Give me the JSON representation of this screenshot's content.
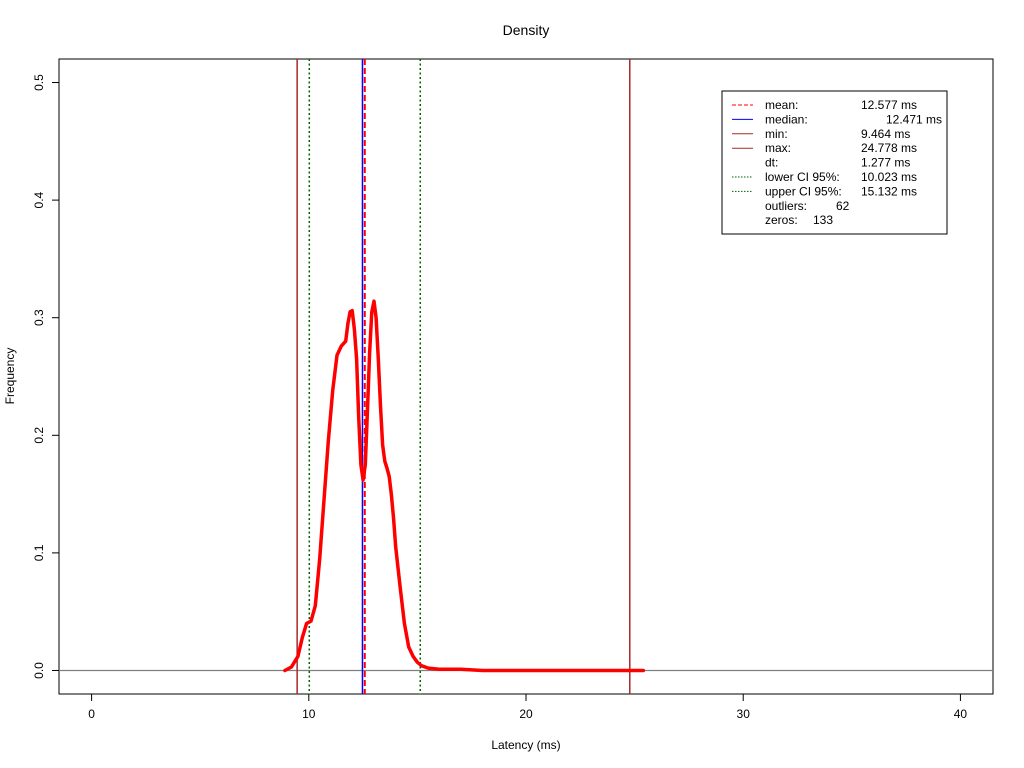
{
  "chart_data": {
    "type": "line",
    "title": "Density",
    "xlabel": "Latency (ms)",
    "ylabel": "Frequency",
    "xlim": [
      -1.5,
      41.5
    ],
    "ylim": [
      -0.02,
      0.52
    ],
    "x_ticks": [
      0,
      10,
      20,
      30,
      40
    ],
    "x_tick_labels": [
      "0",
      "10",
      "20",
      "30",
      "40"
    ],
    "y_ticks": [
      0.0,
      0.1,
      0.2,
      0.3,
      0.4,
      0.5
    ],
    "y_tick_labels": [
      "0.0",
      "0.1",
      "0.2",
      "0.3",
      "0.4",
      "0.5"
    ],
    "grid": false,
    "legend_position": "top-right",
    "colors": {
      "density": "#ff0000",
      "mean": "#ff0000",
      "median": "#0000ff",
      "min": "#a52a2a",
      "max": "#a52a2a",
      "ci": "#006400",
      "baseline": "#808080"
    },
    "series": [
      {
        "x": [
          8.9,
          9.2,
          9.5,
          9.7,
          9.9,
          10.0,
          10.1,
          10.3,
          10.5,
          10.7,
          10.9,
          11.1,
          11.3,
          11.5,
          11.7,
          11.8,
          11.9,
          12.0,
          12.1,
          12.2,
          12.3,
          12.4,
          12.5,
          12.6,
          12.7,
          12.8,
          12.9,
          13.0,
          13.1,
          13.2,
          13.3,
          13.4,
          13.5,
          13.6,
          13.7,
          13.8,
          13.9,
          14.0,
          14.2,
          14.4,
          14.6,
          14.8,
          15.0,
          15.2,
          15.5,
          16.0,
          16.5,
          17.0,
          18.0,
          20.0,
          22.0,
          24.0,
          25.4
        ],
        "y": [
          0.0,
          0.003,
          0.012,
          0.028,
          0.04,
          0.041,
          0.042,
          0.055,
          0.095,
          0.145,
          0.195,
          0.238,
          0.268,
          0.276,
          0.28,
          0.295,
          0.305,
          0.306,
          0.29,
          0.265,
          0.215,
          0.175,
          0.162,
          0.175,
          0.22,
          0.27,
          0.305,
          0.314,
          0.3,
          0.265,
          0.225,
          0.192,
          0.178,
          0.172,
          0.165,
          0.15,
          0.13,
          0.105,
          0.072,
          0.04,
          0.02,
          0.012,
          0.007,
          0.004,
          0.002,
          0.001,
          0.001,
          0.001,
          0.0,
          0.0,
          0.0,
          0.0,
          0.0
        ]
      }
    ],
    "vlines": [
      {
        "label": "mean",
        "x": 12.577,
        "style": "dashed",
        "color": "#ff0000"
      },
      {
        "label": "median",
        "x": 12.471,
        "style": "solid",
        "color": "#0000ff"
      },
      {
        "label": "min",
        "x": 9.464,
        "style": "solid",
        "color": "#a52a2a"
      },
      {
        "label": "max",
        "x": 24.778,
        "style": "solid",
        "color": "#a52a2a"
      },
      {
        "label": "lower CI 95%",
        "x": 10.023,
        "style": "dotted",
        "color": "#006400"
      },
      {
        "label": "upper CI 95%",
        "x": 15.132,
        "style": "dotted",
        "color": "#006400"
      }
    ],
    "legend": [
      {
        "label": "mean:",
        "value": "12.577 ms",
        "line": "dashed",
        "color": "#ff0000"
      },
      {
        "label": "median:",
        "value": "12.471 ms",
        "line": "solid",
        "color": "#0000ff"
      },
      {
        "label": "min:",
        "value": "9.464 ms",
        "line": "solid",
        "color": "#a52a2a"
      },
      {
        "label": "max:",
        "value": "24.778 ms",
        "line": "solid",
        "color": "#a52a2a"
      },
      {
        "label": "dt:",
        "value": "1.277 ms",
        "line": "none",
        "color": ""
      },
      {
        "label": "lower CI 95%:",
        "value": "10.023 ms",
        "line": "dotted",
        "color": "#006400"
      },
      {
        "label": "upper CI 95%:",
        "value": "15.132 ms",
        "line": "dotted",
        "color": "#006400"
      },
      {
        "label": "outliers:",
        "value": "62",
        "line": "none",
        "color": ""
      },
      {
        "label": "zeros:",
        "value": "133",
        "line": "none",
        "color": ""
      }
    ]
  }
}
